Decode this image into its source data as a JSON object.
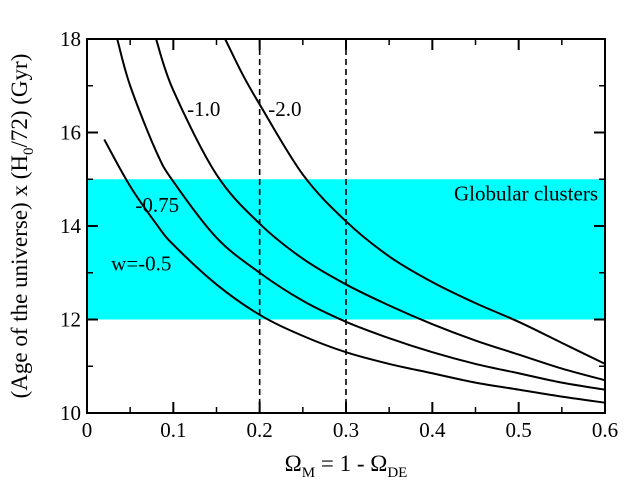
{
  "chart_data": {
    "type": "line",
    "xlabel_main": "Ω",
    "xlabel_sub1": "M",
    "xlabel_mid": " = 1 - Ω",
    "xlabel_sub2": "DE",
    "ylabel_part1": "(Age of the universe) x (H",
    "ylabel_sub": "0",
    "ylabel_part2": "/72) (Gyr)",
    "xlim": [
      0,
      0.6
    ],
    "ylim": [
      10,
      18
    ],
    "x_ticks": [
      "0",
      "0.1",
      "0.2",
      "0.3",
      "0.4",
      "0.5",
      "0.6"
    ],
    "y_ticks": [
      "10",
      "12",
      "14",
      "16",
      "18"
    ],
    "band": {
      "label": "Globular clusters",
      "y_min": 12,
      "y_max": 15,
      "color": "#00ffff"
    },
    "vlines": [
      0.2,
      0.3
    ],
    "series": [
      {
        "name": "w=-0.5",
        "x": [
          0.02,
          0.05,
          0.08,
          0.1,
          0.15,
          0.2,
          0.25,
          0.3,
          0.35,
          0.4,
          0.45,
          0.5,
          0.55,
          0.6
        ],
        "y": [
          15.85,
          14.85,
          14.05,
          13.6,
          12.75,
          12.1,
          11.65,
          11.3,
          11.05,
          10.85,
          10.65,
          10.5,
          10.35,
          10.22
        ]
      },
      {
        "name": "-0.75",
        "x": [
          0.035,
          0.05,
          0.08,
          0.1,
          0.15,
          0.2,
          0.25,
          0.3,
          0.35,
          0.4,
          0.45,
          0.5,
          0.55,
          0.6
        ],
        "y": [
          18.0,
          17.0,
          15.6,
          14.95,
          13.75,
          13.0,
          12.4,
          11.95,
          11.6,
          11.3,
          11.05,
          10.85,
          10.65,
          10.5
        ]
      },
      {
        "name": "-1.0",
        "x": [
          0.08,
          0.1,
          0.15,
          0.2,
          0.25,
          0.3,
          0.35,
          0.4,
          0.45,
          0.5,
          0.55,
          0.6
        ],
        "y": [
          18.0,
          16.9,
          15.1,
          14.05,
          13.3,
          12.75,
          12.3,
          11.9,
          11.55,
          11.25,
          10.95,
          10.7
        ]
      },
      {
        "name": "-2.0",
        "x": [
          0.16,
          0.18,
          0.2,
          0.25,
          0.3,
          0.35,
          0.4,
          0.45,
          0.5,
          0.55,
          0.6
        ],
        "y": [
          18.0,
          17.25,
          16.6,
          15.1,
          14.1,
          13.35,
          12.8,
          12.35,
          11.95,
          11.5,
          11.05
        ]
      }
    ],
    "curve_labels": [
      {
        "text": "w=-0.5",
        "x": 0.028,
        "y": 13.05
      },
      {
        "text": "-0.75",
        "x": 0.056,
        "y": 14.3
      },
      {
        "text": "-1.0",
        "x": 0.116,
        "y": 16.35
      },
      {
        "text": "-2.0",
        "x": 0.21,
        "y": 16.35
      }
    ]
  }
}
